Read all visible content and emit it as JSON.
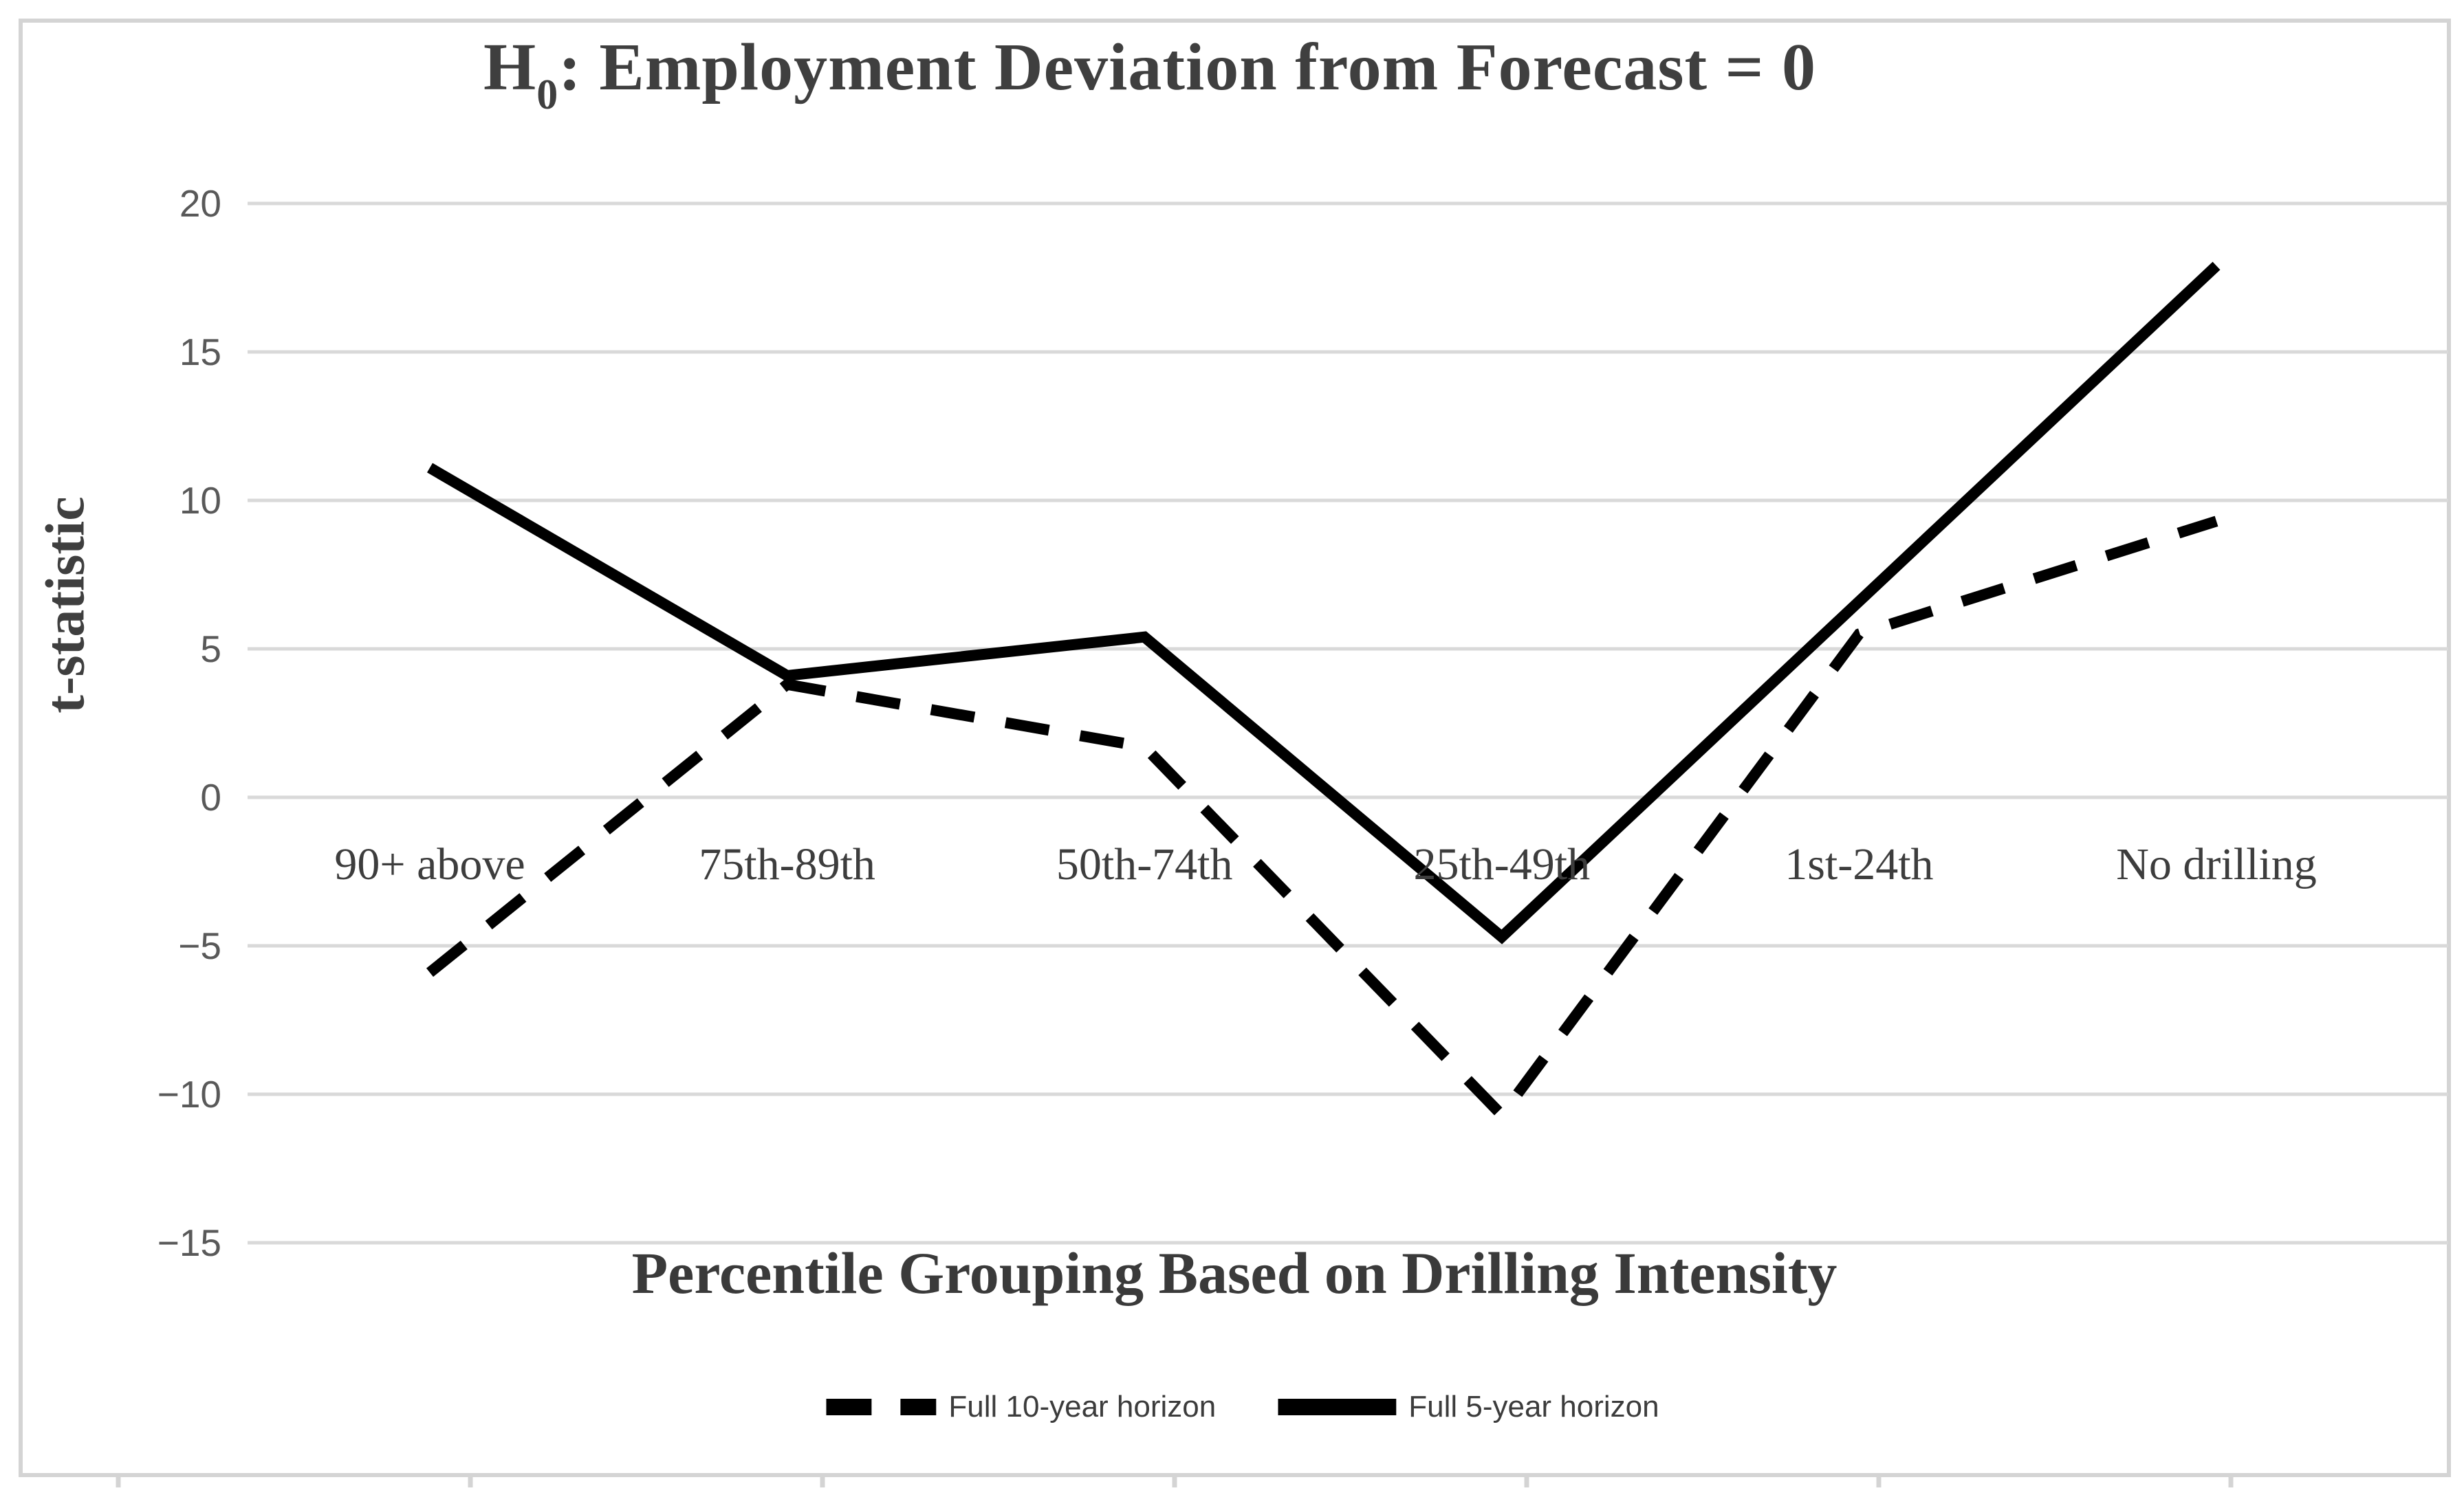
{
  "title": {
    "prefix": "H",
    "subscript": "0",
    "rest": ": Employment Deviation from Forecast = 0"
  },
  "y_axis": {
    "label": "t-statistic",
    "tick_values": [
      20,
      15,
      10,
      5,
      0,
      -5,
      -10,
      -15
    ]
  },
  "x_axis": {
    "label": "Percentile Grouping Based on Drilling Intensity"
  },
  "legend": {
    "items": [
      {
        "label": "Full 10-year horizon",
        "style": "dashed"
      },
      {
        "label": "Full 5-year horizon",
        "style": "solid"
      }
    ]
  },
  "chart_data": {
    "type": "line",
    "title": "H0: Employment Deviation from Forecast = 0",
    "xlabel": "Percentile Grouping Based on Drilling Intensity",
    "ylabel": "t-statistic",
    "categories": [
      "90+ above",
      "75th-89th",
      "50th-74th",
      "25th-49th",
      "1st-24th",
      "No drilling"
    ],
    "series": [
      {
        "name": "Full 10-year horizon",
        "style": "dashed",
        "values": [
          -5.9,
          3.8,
          1.7,
          -10.7,
          5.5,
          9.3
        ]
      },
      {
        "name": "Full 5-year horizon",
        "style": "solid",
        "values": [
          11.1,
          4.1,
          5.4,
          -4.7,
          6.6,
          17.9
        ]
      }
    ],
    "ylim": [
      -17.5,
      22.5
    ],
    "yticks": [
      20,
      15,
      10,
      5,
      0,
      -5,
      -10,
      -15
    ],
    "grid": true,
    "legend_position": "bottom"
  },
  "colors": {
    "background": "#ffffff",
    "line": "#000000",
    "grid": "#d9d9d9",
    "frame": "#d4d4d4",
    "title_text": "#3f3f3f",
    "tick_text": "#595959",
    "category_text": "#3d3d3d",
    "legend_text": "#3c3c3c"
  }
}
